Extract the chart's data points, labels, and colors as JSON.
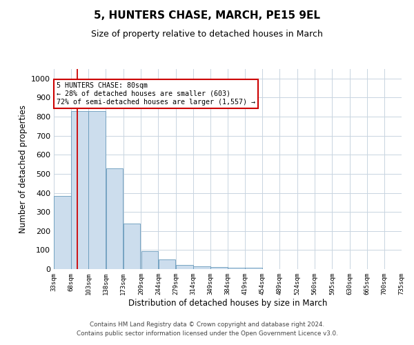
{
  "title": "5, HUNTERS CHASE, MARCH, PE15 9EL",
  "subtitle": "Size of property relative to detached houses in March",
  "xlabel": "Distribution of detached houses by size in March",
  "ylabel": "Number of detached properties",
  "bar_edges": [
    33,
    68,
    103,
    138,
    173,
    209,
    244,
    279,
    314,
    349,
    384,
    419,
    454,
    489,
    524,
    560,
    595,
    630,
    665,
    700,
    735
  ],
  "bar_values": [
    385,
    830,
    830,
    530,
    240,
    95,
    50,
    20,
    15,
    10,
    8,
    8,
    0,
    0,
    0,
    0,
    0,
    0,
    0,
    0
  ],
  "bar_color": "#ccdded",
  "bar_edge_color": "#6699bb",
  "property_size": 80,
  "vline_color": "#cc0000",
  "annotation_line1": "5 HUNTERS CHASE: 80sqm",
  "annotation_line2": "← 28% of detached houses are smaller (603)",
  "annotation_line3": "72% of semi-detached houses are larger (1,557) →",
  "annotation_box_color": "#cc0000",
  "ylim": [
    0,
    1050
  ],
  "yticks": [
    0,
    100,
    200,
    300,
    400,
    500,
    600,
    700,
    800,
    900,
    1000
  ],
  "footer_line1": "Contains HM Land Registry data © Crown copyright and database right 2024.",
  "footer_line2": "Contains public sector information licensed under the Open Government Licence v3.0.",
  "background_color": "#ffffff",
  "grid_color": "#c8d4e0",
  "title_fontsize": 11,
  "subtitle_fontsize": 9
}
